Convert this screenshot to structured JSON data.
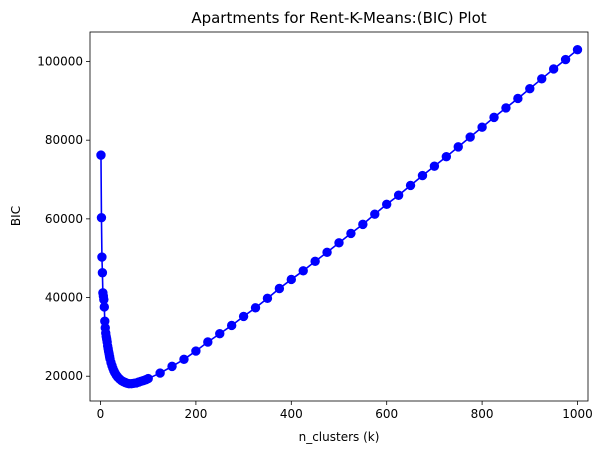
{
  "chart_data": {
    "type": "line",
    "title": "Apartments for Rent-K-Means:(BIC) Plot",
    "xlabel": "n_clusters (k)",
    "ylabel": "BIC",
    "xlim": [
      -22,
      1022
    ],
    "ylim": [
      13700,
      107500
    ],
    "xticks": [
      0,
      200,
      400,
      600,
      800,
      1000
    ],
    "yticks": [
      20000,
      40000,
      60000,
      80000,
      100000
    ],
    "grid": false,
    "series": [
      {
        "color": "#0000ff",
        "marker": "circle",
        "x": [
          1,
          2,
          3,
          4,
          5,
          6,
          7,
          8,
          9,
          10,
          11,
          12,
          13,
          14,
          15,
          16,
          17,
          18,
          19,
          20,
          22,
          24,
          26,
          28,
          30,
          33,
          36,
          40,
          44,
          48,
          52,
          56,
          60,
          65,
          70,
          75,
          80,
          85,
          90,
          95,
          100,
          125,
          150,
          175,
          200,
          225,
          250,
          275,
          300,
          325,
          350,
          375,
          400,
          425,
          450,
          475,
          500,
          525,
          550,
          575,
          600,
          625,
          650,
          675,
          700,
          725,
          750,
          775,
          800,
          825,
          850,
          875,
          900,
          925,
          950,
          975,
          1000
        ],
        "y": [
          76200,
          60300,
          50300,
          46300,
          41200,
          40400,
          39500,
          37600,
          34000,
          32300,
          31000,
          30100,
          29400,
          28700,
          27700,
          27000,
          26300,
          25700,
          25000,
          24400,
          23500,
          22700,
          22000,
          21400,
          20900,
          20300,
          19800,
          19300,
          18900,
          18600,
          18400,
          18200,
          18100,
          18100,
          18200,
          18300,
          18500,
          18700,
          18900,
          19100,
          19400,
          20800,
          22500,
          24300,
          26400,
          28700,
          30800,
          32900,
          35200,
          37400,
          39800,
          42300,
          44600,
          46800,
          49200,
          51500,
          53900,
          56300,
          58600,
          61200,
          63700,
          66000,
          68500,
          71000,
          73400,
          75800,
          78300,
          80800,
          83300,
          85800,
          88200,
          90600,
          93100,
          95600,
          98100,
          100500,
          103000
        ]
      }
    ]
  }
}
